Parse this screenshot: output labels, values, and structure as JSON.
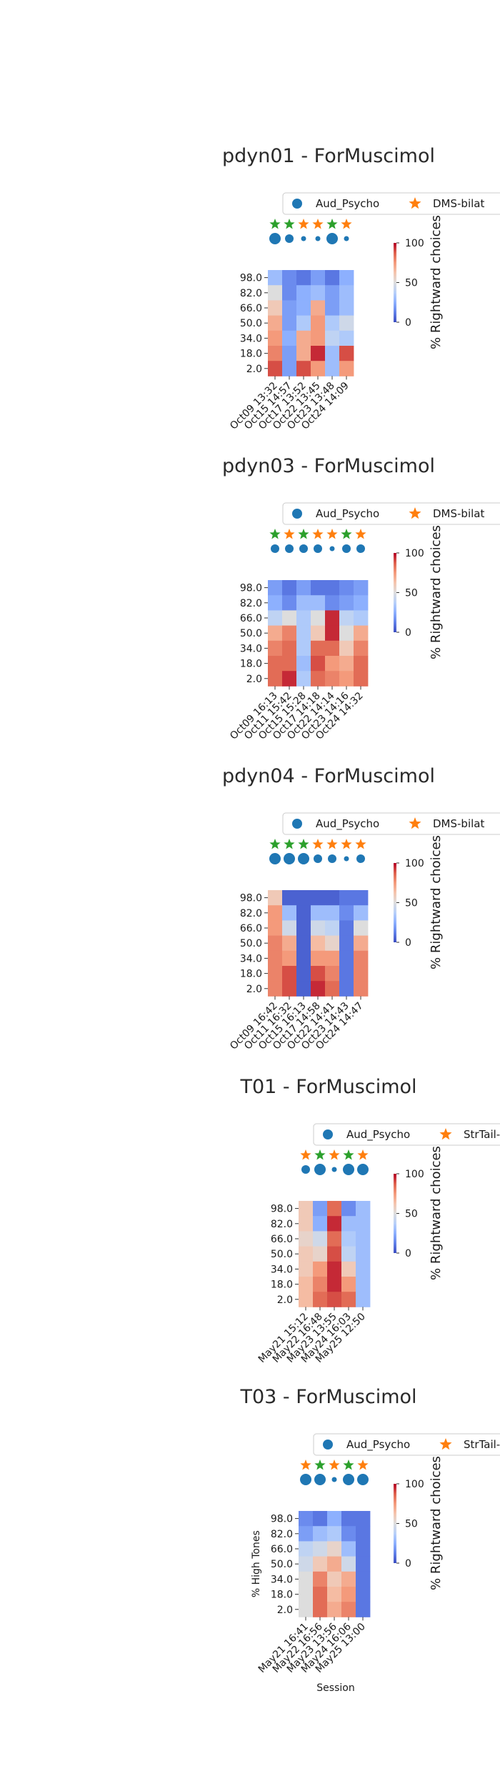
{
  "colors": {
    "aud_psycho": "#1f77b4",
    "star_green": "#2ca02c",
    "star_orange": "#ff7f0e",
    "colormap": "coolwarm"
  },
  "chart_data": [
    {
      "type": "heatmap",
      "title": "pdyn01 - ForMuscimol",
      "legend": [
        "Aud_Psycho",
        "DMS-bilat"
      ],
      "y_categories": [
        "98.0",
        "82.0",
        "66.0",
        "50.0",
        "34.0",
        "18.0",
        "2.0"
      ],
      "x_categories": [
        "Oct09 13:32",
        "Oct15 14:57",
        "Oct17 13:52",
        "Oct22 13:45",
        "Oct23 13:48",
        "Oct24 14:09"
      ],
      "star_colors": [
        "green",
        "green",
        "orange",
        "orange",
        "green",
        "orange"
      ],
      "circle_sizes": [
        "large",
        "medium",
        "small",
        "small",
        "large",
        "small"
      ],
      "values": [
        [
          30,
          15,
          10,
          20,
          10,
          25
        ],
        [
          50,
          15,
          25,
          30,
          20,
          30
        ],
        [
          60,
          20,
          25,
          70,
          20,
          30
        ],
        [
          70,
          20,
          35,
          75,
          35,
          45
        ],
        [
          75,
          25,
          70,
          75,
          40,
          35
        ],
        [
          80,
          20,
          70,
          95,
          30,
          90
        ],
        [
          90,
          20,
          90,
          75,
          30,
          75
        ]
      ],
      "cbar_label": "% Rightward choices",
      "cbar_ticks": [
        "0",
        "50",
        "100"
      ],
      "ylabel": "",
      "xlabel": ""
    },
    {
      "type": "heatmap",
      "title": "pdyn03 - ForMuscimol",
      "legend": [
        "Aud_Psycho",
        "DMS-bilat"
      ],
      "y_categories": [
        "98.0",
        "82.0",
        "66.0",
        "50.0",
        "34.0",
        "18.0",
        "2.0"
      ],
      "x_categories": [
        "Oct09 16:13",
        "Oct11 15:42",
        "Oct15 15:28",
        "Oct17 14:18",
        "Oct22 14:14",
        "Oct23 14:16",
        "Oct24 14:32"
      ],
      "star_colors": [
        "green",
        "orange",
        "green",
        "orange",
        "orange",
        "green",
        "orange"
      ],
      "circle_sizes": [
        "medium",
        "medium",
        "medium",
        "medium",
        "small",
        "medium",
        "medium"
      ],
      "values": [
        [
          20,
          10,
          20,
          10,
          10,
          15,
          20
        ],
        [
          25,
          15,
          30,
          30,
          15,
          20,
          25
        ],
        [
          40,
          50,
          35,
          50,
          95,
          40,
          35
        ],
        [
          70,
          80,
          35,
          60,
          95,
          50,
          70
        ],
        [
          80,
          85,
          35,
          85,
          85,
          60,
          80
        ],
        [
          85,
          85,
          30,
          90,
          75,
          70,
          85
        ],
        [
          85,
          95,
          35,
          85,
          80,
          75,
          85
        ]
      ],
      "cbar_label": "% Rightward choices",
      "cbar_ticks": [
        "0",
        "50",
        "100"
      ],
      "ylabel": "",
      "xlabel": ""
    },
    {
      "type": "heatmap",
      "title": "pdyn04 - ForMuscimol",
      "legend": [
        "Aud_Psycho",
        "DMS-bilat"
      ],
      "y_categories": [
        "98.0",
        "82.0",
        "66.0",
        "50.0",
        "34.0",
        "18.0",
        "2.0"
      ],
      "x_categories": [
        "Oct09 16:42",
        "Oct11 16:32",
        "Oct15 16:13",
        "Oct17 14:58",
        "Oct22 14:41",
        "Oct23 14:43",
        "Oct24 14:47"
      ],
      "star_colors": [
        "green",
        "green",
        "green",
        "orange",
        "orange",
        "orange",
        "orange"
      ],
      "circle_sizes": [
        "large",
        "large",
        "large",
        "medium",
        "medium",
        "small",
        "medium"
      ],
      "values": [
        [
          60,
          5,
          5,
          5,
          5,
          10,
          10
        ],
        [
          75,
          30,
          5,
          30,
          30,
          15,
          30
        ],
        [
          75,
          45,
          5,
          45,
          40,
          10,
          50
        ],
        [
          80,
          70,
          5,
          65,
          55,
          10,
          70
        ],
        [
          80,
          75,
          5,
          75,
          75,
          10,
          80
        ],
        [
          80,
          90,
          5,
          90,
          80,
          10,
          80
        ],
        [
          80,
          90,
          5,
          95,
          85,
          10,
          80
        ]
      ],
      "cbar_label": "% Rightward choices",
      "cbar_ticks": [
        "0",
        "50",
        "100"
      ],
      "ylabel": "",
      "xlabel": ""
    },
    {
      "type": "heatmap",
      "title": "T01 - ForMuscimol",
      "legend": [
        "Aud_Psycho",
        "StrTail-bilat"
      ],
      "y_categories": [
        "98.0",
        "82.0",
        "66.0",
        "50.0",
        "34.0",
        "18.0",
        "2.0"
      ],
      "x_categories": [
        "May21 15:12",
        "May22 16:48",
        "May23 13:55",
        "May24 16:03",
        "May25 12:50"
      ],
      "star_colors": [
        "orange",
        "green",
        "orange",
        "green",
        "orange"
      ],
      "circle_sizes": [
        "medium",
        "large",
        "small",
        "large",
        "large"
      ],
      "values": [
        [
          60,
          20,
          85,
          15,
          30
        ],
        [
          60,
          25,
          95,
          30,
          30
        ],
        [
          55,
          45,
          85,
          35,
          30
        ],
        [
          60,
          55,
          90,
          40,
          30
        ],
        [
          60,
          75,
          95,
          60,
          30
        ],
        [
          65,
          80,
          95,
          75,
          30
        ],
        [
          65,
          85,
          90,
          85,
          30
        ]
      ],
      "cbar_label": "% Rightward choices",
      "cbar_ticks": [
        "0",
        "50",
        "100"
      ],
      "ylabel": "",
      "xlabel": ""
    },
    {
      "type": "heatmap",
      "title": "T03 - ForMuscimol",
      "legend": [
        "Aud_Psycho",
        "StrTail-bilat"
      ],
      "y_categories": [
        "98.0",
        "82.0",
        "66.0",
        "50.0",
        "34.0",
        "18.0",
        "2.0"
      ],
      "x_categories": [
        "May21 16:41",
        "May22 16:56",
        "May23 13:56",
        "May24 16:06",
        "May25 13:00"
      ],
      "star_colors": [
        "orange",
        "green",
        "orange",
        "green",
        "orange"
      ],
      "circle_sizes": [
        "large",
        "large",
        "small",
        "large",
        "large"
      ],
      "values": [
        [
          15,
          10,
          25,
          10,
          10
        ],
        [
          20,
          30,
          35,
          15,
          10
        ],
        [
          40,
          45,
          55,
          30,
          10
        ],
        [
          45,
          60,
          70,
          45,
          10
        ],
        [
          50,
          80,
          60,
          70,
          10
        ],
        [
          50,
          85,
          65,
          75,
          10
        ],
        [
          50,
          85,
          70,
          80,
          10
        ]
      ],
      "cbar_label": "% Rightward choices",
      "cbar_ticks": [
        "0",
        "50",
        "100"
      ],
      "ylabel": "% High Tones",
      "xlabel": "Session"
    }
  ]
}
